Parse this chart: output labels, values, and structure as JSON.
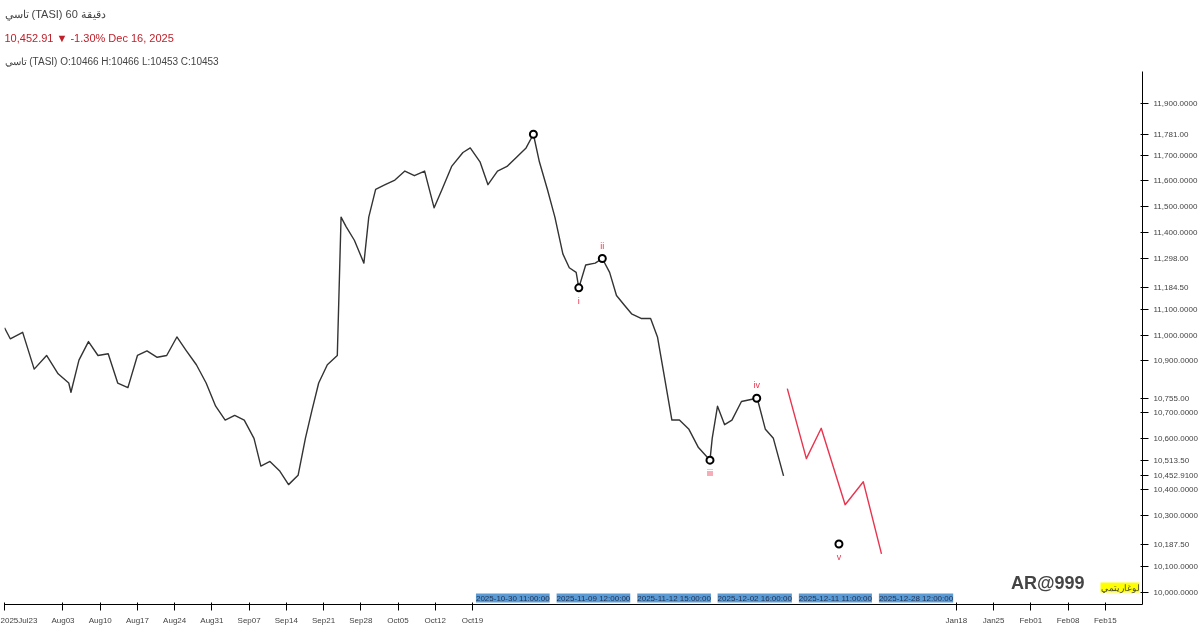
{
  "chart_data": {
    "type": "line",
    "title": "تاسي (TASI)   60 دقيقة",
    "subtitle": "10,452.91 ▼ -1.30%   Dec 16, 2025",
    "annotations": [
      "تاسي (TASI)   O:10466  H:10466  L:10453  C:10453",
      "AR@999",
      "لوغاريتمي",
      "2025-10-30 11:00:00",
      "2025-11-09 12:00:00",
      "2025-11-12 15:00:00",
      "2025-12-02 16:00:00",
      "2025-12-11 11:00:00",
      "2025-12-28 12:00:00",
      {
        "text": "i",
        "x": "2025-11-08T00:00",
        "y": 11184
      },
      {
        "text": "ii",
        "x": "2025-11-12T10:00",
        "y": 11298
      },
      {
        "text": "iii",
        "x": "2025-12-02T16:00",
        "y": 10514
      },
      {
        "text": "iv",
        "x": "2025-12-11T11:00",
        "y": 10755
      },
      {
        "text": "v",
        "x": "2025-12-26T22:00",
        "y": 10188
      }
    ],
    "xlim": [
      "2025-07-23",
      "2026-02-22"
    ],
    "ylim": [
      9953,
      12025
    ],
    "xticks": [
      {
        "value": "2025-07-23",
        "label": "2025Jul23"
      },
      {
        "value": "2025-08-03",
        "label": "Aug03"
      },
      {
        "value": "2025-08-10",
        "label": "Aug10"
      },
      {
        "value": "2025-08-17",
        "label": "Aug17"
      },
      {
        "value": "2025-08-24",
        "label": "Aug24"
      },
      {
        "value": "2025-08-31",
        "label": "Aug31"
      },
      {
        "value": "2025-09-07",
        "label": "Sep07"
      },
      {
        "value": "2025-09-14",
        "label": "Sep14"
      },
      {
        "value": "2025-09-21",
        "label": "Sep21"
      },
      {
        "value": "2025-09-28",
        "label": "Sep28"
      },
      {
        "value": "2025-10-05",
        "label": "Oct05"
      },
      {
        "value": "2025-10-12",
        "label": "Oct12"
      },
      {
        "value": "2025-10-19",
        "label": "Oct19"
      },
      {
        "value": "2026-01-18",
        "label": "Jan18"
      },
      {
        "value": "2026-01-25",
        "label": "Jan25"
      },
      {
        "value": "2026-02-01",
        "label": "Feb01"
      },
      {
        "value": "2026-02-08",
        "label": "Feb08"
      },
      {
        "value": "2026-02-15",
        "label": "Feb15"
      }
    ],
    "yticks": [
      {
        "value": 10000,
        "label": "10,000.0000"
      },
      {
        "value": 10100,
        "label": "10,100.0000"
      },
      {
        "value": 10187.5,
        "label": "10,187.50"
      },
      {
        "value": 10300,
        "label": "10,300.0000"
      },
      {
        "value": 10400,
        "label": "10,400.0000"
      },
      {
        "value": 10452.91,
        "label": "10,452.9100"
      },
      {
        "value": 10513.5,
        "label": "10,513.50"
      },
      {
        "value": 10600,
        "label": "10,600.0000"
      },
      {
        "value": 10700,
        "label": "10,700.0000"
      },
      {
        "value": 10755,
        "label": "10,755.00"
      },
      {
        "value": 10900,
        "label": "10,900.0000"
      },
      {
        "value": 11000,
        "label": "11,000.0000"
      },
      {
        "value": 11100,
        "label": "11,100.0000"
      },
      {
        "value": 11184.5,
        "label": "11,184.50"
      },
      {
        "value": 11298,
        "label": "11,298.00"
      },
      {
        "value": 11400,
        "label": "11,400.0000"
      },
      {
        "value": 11500,
        "label": "11,500.0000"
      },
      {
        "value": 11600,
        "label": "11,600.0000"
      },
      {
        "value": 11700,
        "label": "11,700.0000"
      },
      {
        "value": 11781,
        "label": "11,781.00"
      },
      {
        "value": 11900,
        "label": "11,900.0000"
      }
    ],
    "line_style": "solid",
    "series": [
      {
        "color": "#333333",
        "x": [
          "2025-07-23T00:00",
          "2025-07-24T02:00",
          "2025-07-26T10:00",
          "2025-07-28T14:00",
          "2025-07-30T22:00",
          "2025-08-02T02:00",
          "2025-08-04T02:00",
          "2025-08-04T12:00",
          "2025-08-06T00:00",
          "2025-08-07T19:00",
          "2025-08-09T14:00",
          "2025-08-11T12:00",
          "2025-08-13T07:00",
          "2025-08-15T05:00",
          "2025-08-17T00:00",
          "2025-08-18T19:00",
          "2025-08-20T17:00",
          "2025-08-22T12:00",
          "2025-08-24T10:00",
          "2025-08-26T05:00",
          "2025-08-28T02:00",
          "2025-08-29T22:00",
          "2025-08-31T17:00",
          "2025-09-02T12:00",
          "2025-09-04T07:00",
          "2025-09-06T02:00",
          "2025-09-07T22:00",
          "2025-09-09T05:00",
          "2025-09-10T22:00",
          "2025-09-12T17:00",
          "2025-09-14T10:00",
          "2025-09-16T05:00",
          "2025-09-17T14:00",
          "2025-09-18T19:00",
          "2025-09-20T02:00",
          "2025-09-21T17:00",
          "2025-09-23T14:00",
          "2025-09-24T07:00",
          "2025-09-25T05:00",
          "2025-09-26T19:00",
          "2025-09-28T14:00",
          "2025-09-29T12:00",
          "2025-09-30T19:00",
          "2025-10-02T14:00",
          "2025-10-04T10:00",
          "2025-10-06T07:00",
          "2025-10-08T02:00",
          "2025-10-10T00:00",
          "2025-10-11T19:00",
          "2025-10-13T07:00",
          "2025-10-15T02:00",
          "2025-10-17T05:00",
          "2025-10-18T14:00",
          "2025-10-20T10:00",
          "2025-10-21T22:00",
          "2025-10-23T17:00",
          "2025-10-25T12:00",
          "2025-10-27T07:00",
          "2025-10-29T02:00",
          "2025-10-30T11:00",
          "2025-10-31T14:00",
          "2025-11-02T02:00",
          "2025-11-03T12:00",
          "2025-11-05T00:00",
          "2025-11-06T05:00",
          "2025-11-07T12:00",
          "2025-11-08T00:00",
          "2025-11-09T07:00",
          "2025-11-11T02:00",
          "2025-11-12T10:00",
          "2025-11-13T19:00",
          "2025-11-15T02:00",
          "2025-11-16T12:00",
          "2025-11-17T22:00",
          "2025-11-19T17:00",
          "2025-11-21T12:00",
          "2025-11-22T19:00",
          "2025-11-24T00:00",
          "2025-11-25T12:00",
          "2025-11-26T22:00",
          "2025-11-28T17:00",
          "2025-11-30T12:00",
          "2025-12-02T16:00",
          "2025-12-03T02:00",
          "2025-12-04T02:00",
          "2025-12-05T10:00",
          "2025-12-06T19:00",
          "2025-12-08T14:00",
          "2025-12-11T11:00",
          "2025-12-11T17:00",
          "2025-12-13T02:00",
          "2025-12-14T14:00",
          "2025-12-16T12:00"
        ],
        "values": [
          11029,
          10986,
          11011,
          10868,
          10921,
          10850,
          10814,
          10778,
          10903,
          10975,
          10921,
          10928,
          10814,
          10796,
          10921,
          10939,
          10914,
          10921,
          10993,
          10939,
          10885,
          10814,
          10724,
          10670,
          10688,
          10670,
          10599,
          10491,
          10509,
          10473,
          10419,
          10455,
          10599,
          10706,
          10814,
          10885,
          10921,
          11459,
          11423,
          11369,
          11280,
          11459,
          11567,
          11585,
          11603,
          11638,
          11620,
          11638,
          11495,
          11567,
          11656,
          11710,
          11728,
          11674,
          11585,
          11638,
          11656,
          11692,
          11728,
          11781,
          11674,
          11567,
          11459,
          11316,
          11262,
          11244,
          11184,
          11273,
          11280,
          11298,
          11244,
          11154,
          11118,
          11083,
          11065,
          11065,
          10993,
          10850,
          10670,
          10670,
          10634,
          10563,
          10514,
          10599,
          10724,
          10652,
          10670,
          10742,
          10755,
          10742,
          10634,
          10599,
          10453
        ]
      },
      {
        "color": "#e8344e",
        "x": [
          "2025-12-17T05:00",
          "2025-12-20T19:00",
          "2025-12-23T14:00",
          "2025-12-28T02:00",
          "2025-12-31T12:00",
          "2026-01-03T22:00"
        ],
        "values": [
          10792,
          10520,
          10638,
          10341,
          10430,
          10150
        ]
      },
      {
        "type": "scatter",
        "marker": "circle",
        "color": "#000000",
        "x": [
          "2025-10-30T11:00",
          "2025-11-08T00:00",
          "2025-11-12T10:00",
          "2025-12-02T16:00",
          "2025-12-11T11:00",
          "2025-12-26T22:00"
        ],
        "values": [
          11781,
          11184,
          11298,
          10514,
          10755,
          10188
        ]
      }
    ]
  }
}
